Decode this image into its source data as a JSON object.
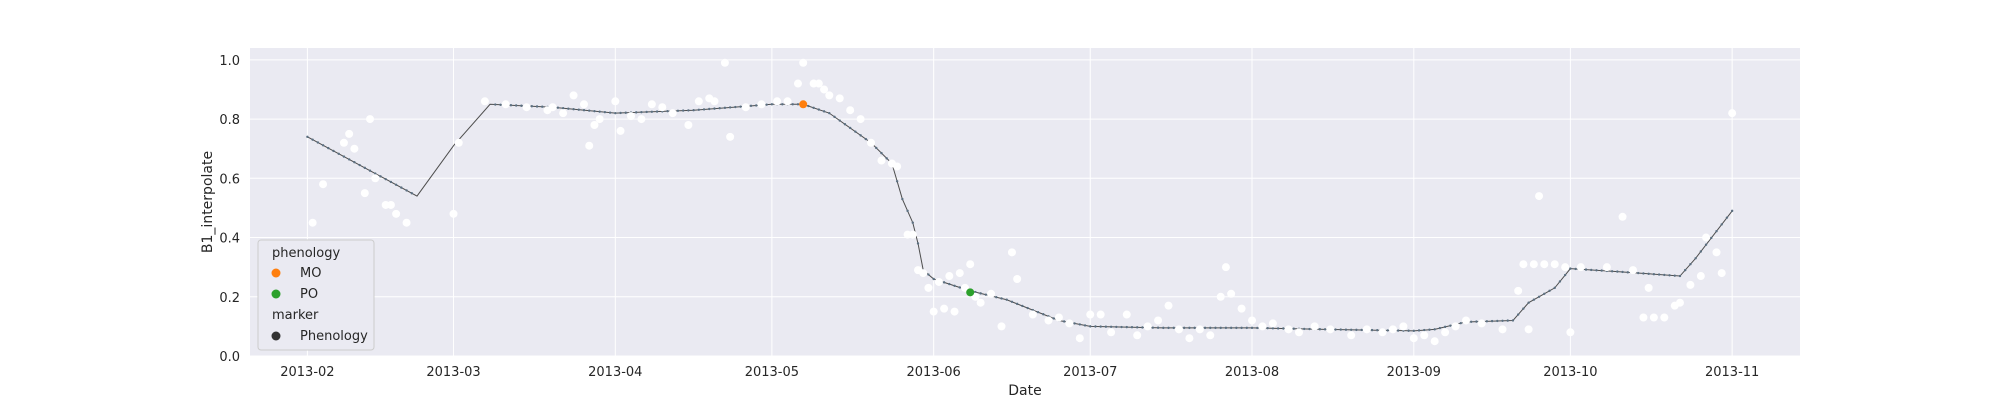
{
  "chart_data": {
    "type": "scatter",
    "xlabel": "Date",
    "ylabel": "B1_interpolate",
    "xlim": [
      "2013-01-21",
      "2013-11-14"
    ],
    "ylim": [
      0.0,
      1.04
    ],
    "x_ticks": [
      "2013-02-01",
      "2013-03-01",
      "2013-04-01",
      "2013-05-01",
      "2013-06-01",
      "2013-07-01",
      "2013-08-01",
      "2013-09-01",
      "2013-10-01",
      "2013-11-01"
    ],
    "x_tick_labels": [
      "2013-02",
      "2013-03",
      "2013-04",
      "2013-05",
      "2013-06",
      "2013-07",
      "2013-08",
      "2013-09",
      "2013-10",
      "2013-11"
    ],
    "y_ticks": [
      0.0,
      0.2,
      0.4,
      0.6,
      0.8,
      1.0
    ],
    "y_tick_labels": [
      "0.0",
      "0.2",
      "0.4",
      "0.6",
      "0.8",
      "1.0"
    ],
    "grid": true,
    "legend": {
      "placement": "lower-left",
      "hue_title": "phenology",
      "marker_title": "marker",
      "items": [
        {
          "label": "MO",
          "color": "#ff7f0e"
        },
        {
          "label": "PO",
          "color": "#2ca02c"
        },
        {
          "label": "Phenology",
          "color": "#333333"
        }
      ]
    },
    "colors": {
      "background": "#eaeaf2",
      "grid": "#ffffff",
      "raw_points": "#ffffff",
      "curve": "#4d4d4d",
      "curve_markers": "#5b6f80",
      "MO": "#ff7f0e",
      "PO": "#2ca02c"
    },
    "series": [
      {
        "kind": "raw_points",
        "points": [
          [
            "2013-02-02",
            0.45
          ],
          [
            "2013-02-04",
            0.58
          ],
          [
            "2013-02-08",
            0.72
          ],
          [
            "2013-02-09",
            0.75
          ],
          [
            "2013-02-10",
            0.7
          ],
          [
            "2013-02-12",
            0.55
          ],
          [
            "2013-02-13",
            0.8
          ],
          [
            "2013-02-14",
            0.6
          ],
          [
            "2013-02-16",
            0.51
          ],
          [
            "2013-02-17",
            0.51
          ],
          [
            "2013-02-18",
            0.48
          ],
          [
            "2013-02-20",
            0.45
          ],
          [
            "2013-03-01",
            0.48
          ],
          [
            "2013-03-02",
            0.72
          ],
          [
            "2013-03-07",
            0.86
          ],
          [
            "2013-03-11",
            0.85
          ],
          [
            "2013-03-15",
            0.84
          ],
          [
            "2013-03-19",
            0.83
          ],
          [
            "2013-03-20",
            0.84
          ],
          [
            "2013-03-22",
            0.82
          ],
          [
            "2013-03-24",
            0.88
          ],
          [
            "2013-03-26",
            0.85
          ],
          [
            "2013-03-27",
            0.71
          ],
          [
            "2013-03-28",
            0.78
          ],
          [
            "2013-03-29",
            0.8
          ],
          [
            "2013-04-01",
            0.86
          ],
          [
            "2013-04-02",
            0.76
          ],
          [
            "2013-04-04",
            0.81
          ],
          [
            "2013-04-06",
            0.8
          ],
          [
            "2013-04-08",
            0.85
          ],
          [
            "2013-04-10",
            0.84
          ],
          [
            "2013-04-12",
            0.82
          ],
          [
            "2013-04-15",
            0.78
          ],
          [
            "2013-04-17",
            0.86
          ],
          [
            "2013-04-19",
            0.87
          ],
          [
            "2013-04-20",
            0.86
          ],
          [
            "2013-04-22",
            0.99
          ],
          [
            "2013-04-23",
            0.74
          ],
          [
            "2013-04-26",
            0.84
          ],
          [
            "2013-04-29",
            0.85
          ],
          [
            "2013-05-02",
            0.86
          ],
          [
            "2013-05-04",
            0.86
          ],
          [
            "2013-05-06",
            0.92
          ],
          [
            "2013-05-07",
            0.99
          ],
          [
            "2013-05-09",
            0.92
          ],
          [
            "2013-05-10",
            0.92
          ],
          [
            "2013-05-11",
            0.9
          ],
          [
            "2013-05-12",
            0.88
          ],
          [
            "2013-05-14",
            0.87
          ],
          [
            "2013-05-16",
            0.83
          ],
          [
            "2013-05-18",
            0.8
          ],
          [
            "2013-05-20",
            0.72
          ],
          [
            "2013-05-22",
            0.66
          ],
          [
            "2013-05-24",
            0.65
          ],
          [
            "2013-05-25",
            0.64
          ],
          [
            "2013-05-27",
            0.41
          ],
          [
            "2013-05-28",
            0.41
          ],
          [
            "2013-05-29",
            0.29
          ],
          [
            "2013-05-30",
            0.28
          ],
          [
            "2013-05-31",
            0.23
          ],
          [
            "2013-06-01",
            0.15
          ],
          [
            "2013-06-02",
            0.25
          ],
          [
            "2013-06-03",
            0.16
          ],
          [
            "2013-06-04",
            0.27
          ],
          [
            "2013-06-05",
            0.15
          ],
          [
            "2013-06-06",
            0.28
          ],
          [
            "2013-06-07",
            0.23
          ],
          [
            "2013-06-08",
            0.31
          ],
          [
            "2013-06-09",
            0.2
          ],
          [
            "2013-06-10",
            0.18
          ],
          [
            "2013-06-12",
            0.21
          ],
          [
            "2013-06-14",
            0.1
          ],
          [
            "2013-06-16",
            0.35
          ],
          [
            "2013-06-17",
            0.26
          ],
          [
            "2013-06-20",
            0.14
          ],
          [
            "2013-06-23",
            0.12
          ],
          [
            "2013-06-25",
            0.13
          ],
          [
            "2013-06-27",
            0.11
          ],
          [
            "2013-06-29",
            0.06
          ],
          [
            "2013-07-01",
            0.14
          ],
          [
            "2013-07-03",
            0.14
          ],
          [
            "2013-07-05",
            0.08
          ],
          [
            "2013-07-08",
            0.14
          ],
          [
            "2013-07-10",
            0.07
          ],
          [
            "2013-07-12",
            0.1
          ],
          [
            "2013-07-14",
            0.12
          ],
          [
            "2013-07-16",
            0.17
          ],
          [
            "2013-07-18",
            0.09
          ],
          [
            "2013-07-20",
            0.06
          ],
          [
            "2013-07-22",
            0.09
          ],
          [
            "2013-07-24",
            0.07
          ],
          [
            "2013-07-26",
            0.2
          ],
          [
            "2013-07-27",
            0.3
          ],
          [
            "2013-07-28",
            0.21
          ],
          [
            "2013-07-30",
            0.16
          ],
          [
            "2013-08-01",
            0.12
          ],
          [
            "2013-08-03",
            0.1
          ],
          [
            "2013-08-05",
            0.11
          ],
          [
            "2013-08-08",
            0.09
          ],
          [
            "2013-08-10",
            0.08
          ],
          [
            "2013-08-13",
            0.1
          ],
          [
            "2013-08-16",
            0.09
          ],
          [
            "2013-08-20",
            0.07
          ],
          [
            "2013-08-23",
            0.09
          ],
          [
            "2013-08-26",
            0.08
          ],
          [
            "2013-08-28",
            0.09
          ],
          [
            "2013-08-30",
            0.1
          ],
          [
            "2013-09-01",
            0.06
          ],
          [
            "2013-09-03",
            0.07
          ],
          [
            "2013-09-05",
            0.05
          ],
          [
            "2013-09-07",
            0.08
          ],
          [
            "2013-09-09",
            0.1
          ],
          [
            "2013-09-11",
            0.12
          ],
          [
            "2013-09-14",
            0.11
          ],
          [
            "2013-09-18",
            0.09
          ],
          [
            "2013-09-21",
            0.22
          ],
          [
            "2013-09-22",
            0.31
          ],
          [
            "2013-09-23",
            0.09
          ],
          [
            "2013-09-24",
            0.31
          ],
          [
            "2013-09-25",
            0.54
          ],
          [
            "2013-09-26",
            0.31
          ],
          [
            "2013-09-28",
            0.31
          ],
          [
            "2013-09-30",
            0.3
          ],
          [
            "2013-10-01",
            0.08
          ],
          [
            "2013-10-03",
            0.3
          ],
          [
            "2013-10-08",
            0.3
          ],
          [
            "2013-10-11",
            0.47
          ],
          [
            "2013-10-13",
            0.29
          ],
          [
            "2013-10-15",
            0.13
          ],
          [
            "2013-10-16",
            0.23
          ],
          [
            "2013-10-17",
            0.13
          ],
          [
            "2013-10-19",
            0.13
          ],
          [
            "2013-10-21",
            0.17
          ],
          [
            "2013-10-22",
            0.18
          ],
          [
            "2013-10-24",
            0.24
          ],
          [
            "2013-10-26",
            0.27
          ],
          [
            "2013-10-27",
            0.4
          ],
          [
            "2013-10-29",
            0.35
          ],
          [
            "2013-10-30",
            0.28
          ],
          [
            "2013-11-01",
            0.82
          ]
        ]
      },
      {
        "kind": "curve",
        "points": [
          [
            "2013-02-01",
            0.74
          ],
          [
            "2013-02-22",
            0.54
          ],
          [
            "2013-03-01",
            0.71
          ],
          [
            "2013-03-08",
            0.85
          ],
          [
            "2013-03-20",
            0.84
          ],
          [
            "2013-04-01",
            0.82
          ],
          [
            "2013-04-16",
            0.83
          ],
          [
            "2013-05-01",
            0.85
          ],
          [
            "2013-05-07",
            0.85
          ],
          [
            "2013-05-12",
            0.82
          ],
          [
            "2013-05-20",
            0.72
          ],
          [
            "2013-05-24",
            0.65
          ],
          [
            "2013-05-26",
            0.53
          ],
          [
            "2013-05-28",
            0.45
          ],
          [
            "2013-05-29",
            0.38
          ],
          [
            "2013-05-30",
            0.29
          ],
          [
            "2013-06-01",
            0.26
          ],
          [
            "2013-06-08",
            0.22
          ],
          [
            "2013-06-15",
            0.19
          ],
          [
            "2013-06-25",
            0.12
          ],
          [
            "2013-07-01",
            0.1
          ],
          [
            "2013-07-15",
            0.095
          ],
          [
            "2013-08-01",
            0.095
          ],
          [
            "2013-08-15",
            0.09
          ],
          [
            "2013-09-01",
            0.085
          ],
          [
            "2013-09-05",
            0.09
          ],
          [
            "2013-09-11",
            0.115
          ],
          [
            "2013-09-20",
            0.12
          ],
          [
            "2013-09-23",
            0.18
          ],
          [
            "2013-09-28",
            0.23
          ],
          [
            "2013-10-01",
            0.295
          ],
          [
            "2013-10-10",
            0.285
          ],
          [
            "2013-10-22",
            0.27
          ],
          [
            "2013-10-25",
            0.33
          ],
          [
            "2013-11-01",
            0.49
          ]
        ]
      }
    ],
    "phenology_points": [
      {
        "label": "MO",
        "date": "2013-05-07",
        "value": 0.85
      },
      {
        "label": "PO",
        "date": "2013-06-08",
        "value": 0.215
      }
    ]
  }
}
